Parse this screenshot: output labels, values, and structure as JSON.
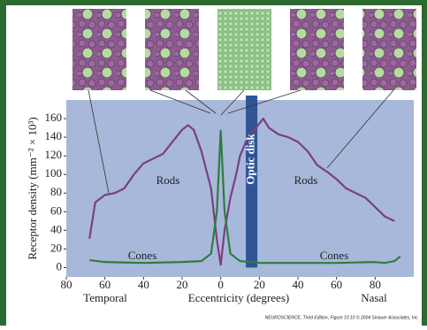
{
  "chart_data": {
    "type": "line",
    "xlabel": "Eccentricity (degrees)",
    "ylabel": "Receptor density (mm⁻² × 10³)",
    "side_labels": [
      "Temporal",
      "Nasal"
    ],
    "footer": "NEUROSCIENCE, Third Edition, Figure 10.10 © 2004 Sinauer Associates, Inc.",
    "optic_disk": {
      "label": "Optic disk",
      "x": [
        13,
        19
      ]
    },
    "xlim": [
      -80,
      100
    ],
    "xticks": [
      {
        "value": -80,
        "label": "80"
      },
      {
        "value": -60,
        "label": "60"
      },
      {
        "value": -40,
        "label": "40"
      },
      {
        "value": -20,
        "label": "20"
      },
      0,
      20,
      40,
      60,
      80
    ],
    "ylim": [
      -10,
      180
    ],
    "yticks": [
      0,
      20,
      40,
      60,
      80,
      100,
      120,
      140,
      160
    ],
    "series": [
      {
        "name": "Rods",
        "color": "#7b3f7e",
        "x": [
          -68,
          -65,
          -60,
          -55,
          -50,
          -45,
          -40,
          -35,
          -30,
          -25,
          -20,
          -17,
          -14,
          -10,
          -5,
          -2,
          0,
          2,
          5,
          8,
          10,
          13,
          16,
          19,
          22,
          25,
          30,
          35,
          40,
          45,
          50,
          55,
          60,
          65,
          70,
          75,
          80,
          85,
          90
        ],
        "values": [
          31,
          70,
          78,
          80,
          85,
          100,
          112,
          117,
          122,
          135,
          148,
          153,
          148,
          125,
          85,
          30,
          3,
          40,
          75,
          100,
          120,
          135,
          145,
          152,
          160,
          150,
          143,
          140,
          135,
          125,
          110,
          103,
          95,
          85,
          80,
          75,
          65,
          55,
          50
        ]
      },
      {
        "name": "Cones",
        "color": "#2e7d3e",
        "x": [
          -68,
          -60,
          -40,
          -20,
          -10,
          -5,
          -2,
          0,
          2,
          5,
          10,
          20,
          40,
          60,
          80,
          85,
          90,
          93
        ],
        "values": [
          8,
          6,
          5,
          6,
          7,
          15,
          60,
          147,
          60,
          15,
          7,
          5,
          5,
          5,
          6,
          5,
          7,
          12
        ]
      }
    ]
  }
}
